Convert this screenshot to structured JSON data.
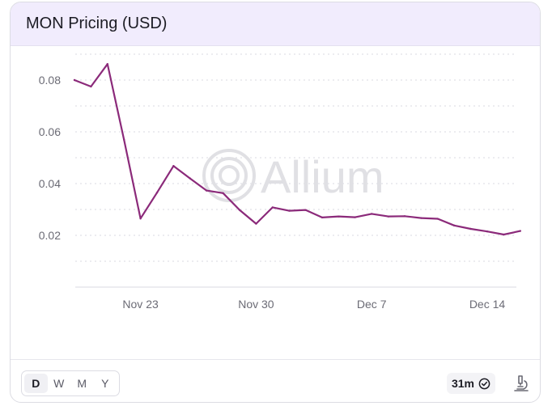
{
  "card": {
    "title": "MON Pricing (USD)"
  },
  "watermark": {
    "text": "Allium"
  },
  "footer": {
    "ranges": [
      "D",
      "W",
      "M",
      "Y"
    ],
    "active_range": "D",
    "age_label": "31m",
    "age_icon": "clock-check-icon",
    "explore_icon": "microscope-icon"
  },
  "colors": {
    "line": "#8b2a7a",
    "header_bg": "#f1ecfd",
    "grid": "#d9d9e0"
  },
  "chart_data": {
    "type": "line",
    "title": "MON Pricing (USD)",
    "xlabel": "",
    "ylabel": "",
    "x": [
      "2025-11-19",
      "2025-11-20",
      "2025-11-21",
      "2025-11-22",
      "2025-11-23",
      "2025-11-24",
      "2025-11-25",
      "2025-11-26",
      "2025-11-27",
      "2025-11-28",
      "2025-11-29",
      "2025-11-30",
      "2025-12-01",
      "2025-12-02",
      "2025-12-03",
      "2025-12-04",
      "2025-12-05",
      "2025-12-06",
      "2025-12-07",
      "2025-12-08",
      "2025-12-09",
      "2025-12-10",
      "2025-12-11",
      "2025-12-12",
      "2025-12-13",
      "2025-12-14",
      "2025-12-15",
      "2025-12-16",
      "2025-12-17",
      "2025-12-18"
    ],
    "values": [
      0.08,
      0.0775,
      0.0862,
      0.057,
      0.0265,
      0.0365,
      0.0468,
      0.042,
      0.0373,
      0.0363,
      0.0298,
      0.0245,
      0.0308,
      0.0295,
      0.0298,
      0.0269,
      0.0273,
      0.027,
      0.0283,
      0.0273,
      0.0274,
      0.0267,
      0.0264,
      0.0238,
      0.0225,
      0.0215,
      0.0203,
      0.0217,
      null,
      null
    ],
    "xticks": [
      {
        "date": "2025-11-23",
        "label": "Nov 23"
      },
      {
        "date": "2025-11-30",
        "label": "Nov 30"
      },
      {
        "date": "2025-12-07",
        "label": "Dec 7"
      },
      {
        "date": "2025-12-14",
        "label": "Dec 14"
      }
    ],
    "yticks": [
      0.02,
      0.04,
      0.06,
      0.08
    ],
    "ytick_labels": [
      "0.02",
      "0.04",
      "0.06",
      "0.08"
    ],
    "ylim": [
      0.0,
      0.09
    ],
    "grid": "horizontal dotted",
    "legend": "none"
  }
}
